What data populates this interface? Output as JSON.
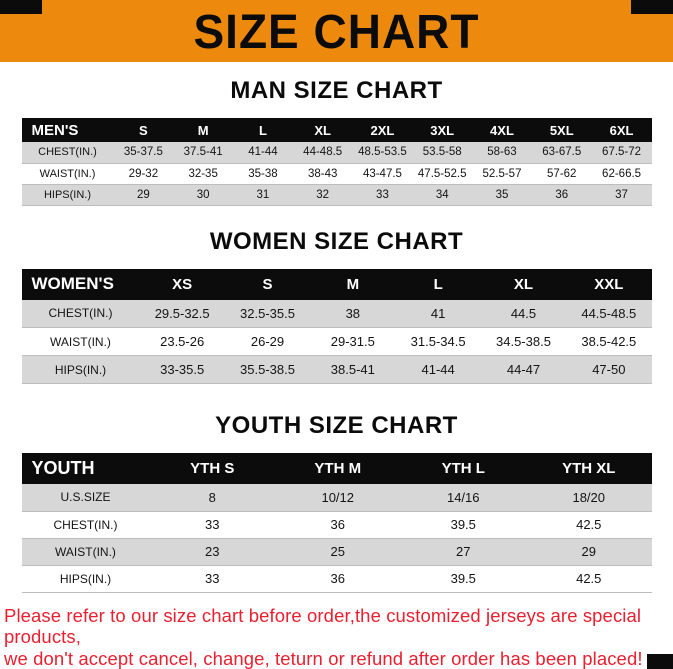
{
  "banner": {
    "title": "SIZE CHART"
  },
  "colors": {
    "banner_orange": "#ED8A0D",
    "table_header_black": "#0C0C0C",
    "stripe_gray": "#D7D7D7",
    "footer_red": "#E8202F"
  },
  "sections": [
    {
      "id": "men",
      "heading": "MAN SIZE CHART",
      "table": {
        "header": [
          "MEN'S",
          "S",
          "M",
          "L",
          "XL",
          "2XL",
          "3XL",
          "4XL",
          "5XL",
          "6XL"
        ],
        "rows": [
          [
            "CHEST(IN.)",
            "35-37.5",
            "37.5-41",
            "41-44",
            "44-48.5",
            "48.5-53.5",
            "53.5-58",
            "58-63",
            "63-67.5",
            "67.5-72"
          ],
          [
            "WAIST(IN.)",
            "29-32",
            "32-35",
            "35-38",
            "38-43",
            "43-47.5",
            "47.5-52.5",
            "52.5-57",
            "57-62",
            "62-66.5"
          ],
          [
            "HIPS(IN.)",
            "29",
            "30",
            "31",
            "32",
            "33",
            "34",
            "35",
            "36",
            "37"
          ]
        ]
      }
    },
    {
      "id": "women",
      "heading": "WOMEN SIZE CHART",
      "table": {
        "header": [
          "WOMEN'S",
          "XS",
          "S",
          "M",
          "L",
          "XL",
          "XXL"
        ],
        "rows": [
          [
            "CHEST(IN.)",
            "29.5-32.5",
            "32.5-35.5",
            "38",
            "41",
            "44.5",
            "44.5-48.5"
          ],
          [
            "WAIST(IN.)",
            "23.5-26",
            "26-29",
            "29-31.5",
            "31.5-34.5",
            "34.5-38.5",
            "38.5-42.5"
          ],
          [
            "HIPS(IN.)",
            "33-35.5",
            "35.5-38.5",
            "38.5-41",
            "41-44",
            "44-47",
            "47-50"
          ]
        ]
      }
    },
    {
      "id": "youth",
      "heading": "YOUTH SIZE CHART",
      "table": {
        "header": [
          "YOUTH",
          "YTH S",
          "YTH M",
          "YTH L",
          "YTH XL"
        ],
        "rows": [
          [
            "U.S.SIZE",
            "8",
            "10/12",
            "14/16",
            "18/20"
          ],
          [
            "CHEST(IN.)",
            "33",
            "36",
            "39.5",
            "42.5"
          ],
          [
            "WAIST(IN.)",
            "23",
            "25",
            "27",
            "29"
          ],
          [
            "HIPS(IN.)",
            "33",
            "36",
            "39.5",
            "42.5"
          ]
        ]
      }
    }
  ],
  "footer": {
    "lines": [
      "Please refer to our size chart before order,the customized jerseys are special products,",
      "we don't accept cancel, change, teturn or refund after order has been placed!"
    ]
  }
}
